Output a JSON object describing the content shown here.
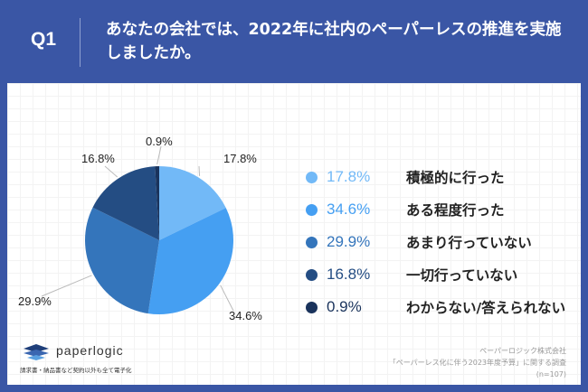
{
  "header": {
    "question_no": "Q1",
    "title": "あなたの会社では、2022年に社内のペーパーレスの推進を実施しましたか。"
  },
  "legend": [
    {
      "pct": "17.8%",
      "label": "積極的に行った",
      "color": "#72b9f7"
    },
    {
      "pct": "34.6%",
      "label": "ある程度行った",
      "color": "#459ff2"
    },
    {
      "pct": "29.9%",
      "label": "あまり行っていない",
      "color": "#3475bb"
    },
    {
      "pct": "16.8%",
      "label": "一切行っていない",
      "color": "#244d83"
    },
    {
      "pct": "0.9%",
      "label": "わからない/答えられない",
      "color": "#1a335c"
    }
  ],
  "pie_labels": [
    "17.8%",
    "34.6%",
    "29.9%",
    "16.8%",
    "0.9%"
  ],
  "footer": {
    "logo_text": "paperlogic",
    "logo_tagline": "請求書・納品書など契約以外も全て電子化",
    "source_company": "ペーパーロジック株式会社",
    "source_survey": "「ペーパーレス化に伴う2023年度予算」に関する調査",
    "source_n": "(n=107)"
  },
  "chart_data": {
    "type": "pie",
    "title": "あなたの会社では、2022年に社内のペーパーレスの推進を実施しましたか。",
    "categories": [
      "積極的に行った",
      "ある程度行った",
      "あまり行っていない",
      "一切行っていない",
      "わからない/答えられない"
    ],
    "values": [
      17.8,
      34.6,
      29.9,
      16.8,
      0.9
    ],
    "colors": [
      "#72b9f7",
      "#459ff2",
      "#3475bb",
      "#244d83",
      "#1a335c"
    ],
    "legend_position": "right",
    "n": 107
  }
}
